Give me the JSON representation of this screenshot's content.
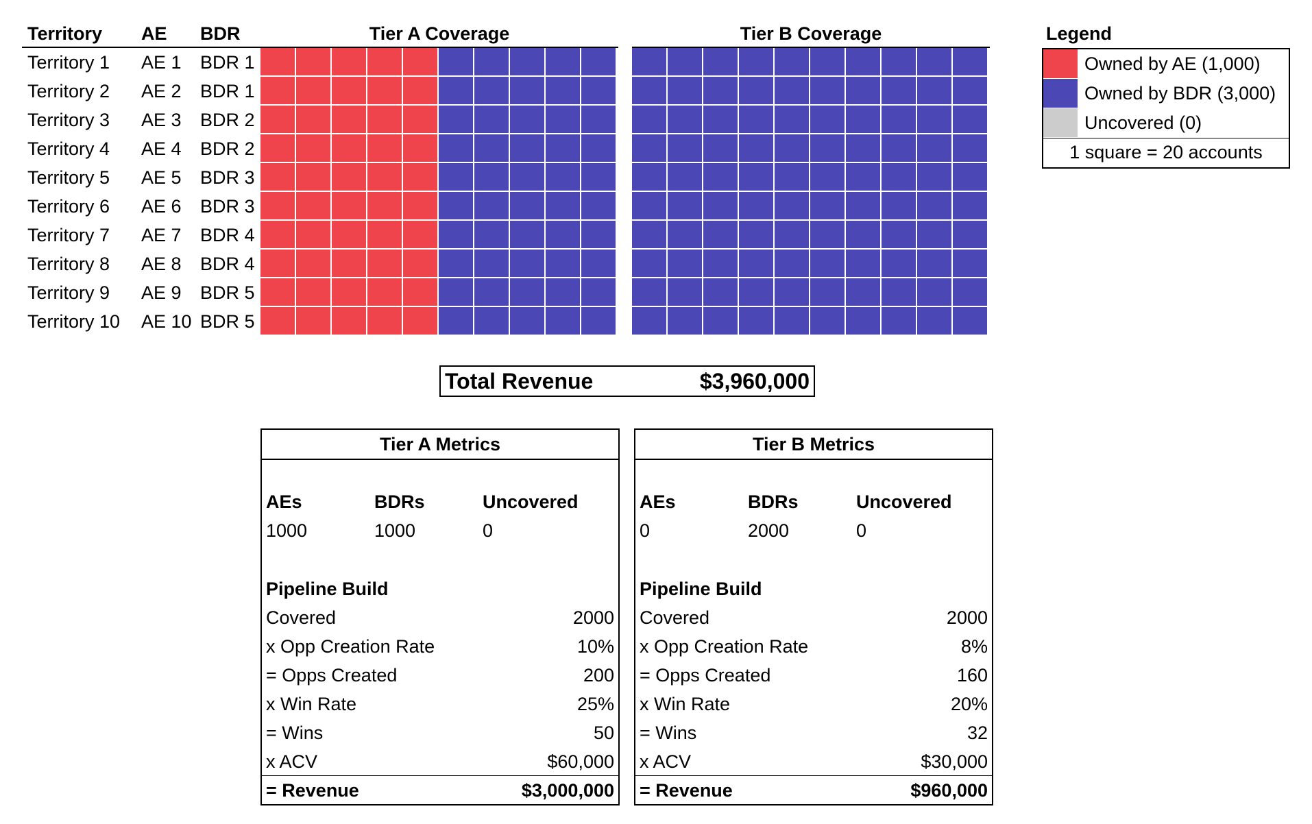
{
  "colors": {
    "ae": "#ef444b",
    "bdr": "#4b48b6",
    "uncovered": "#cccccc"
  },
  "territory_table": {
    "headers": {
      "territory": "Territory",
      "ae": "AE",
      "bdr": "BDR",
      "tier_a": "Tier A Coverage",
      "tier_b": "Tier B Coverage"
    },
    "rows": [
      {
        "territory": "Territory 1",
        "ae": "AE 1",
        "bdr": "BDR 1"
      },
      {
        "territory": "Territory 2",
        "ae": "AE 2",
        "bdr": "BDR 1"
      },
      {
        "territory": "Territory 3",
        "ae": "AE 3",
        "bdr": "BDR 2"
      },
      {
        "territory": "Territory 4",
        "ae": "AE 4",
        "bdr": "BDR 2"
      },
      {
        "territory": "Territory 5",
        "ae": "AE 5",
        "bdr": "BDR 3"
      },
      {
        "territory": "Territory 6",
        "ae": "AE 6",
        "bdr": "BDR 3"
      },
      {
        "territory": "Territory 7",
        "ae": "AE 7",
        "bdr": "BDR 4"
      },
      {
        "territory": "Territory 8",
        "ae": "AE 8",
        "bdr": "BDR 4"
      },
      {
        "territory": "Territory 9",
        "ae": "AE 9",
        "bdr": "BDR 5"
      },
      {
        "territory": "Territory 10",
        "ae": "AE 10",
        "bdr": "BDR 5"
      }
    ],
    "squares_per_row": 10,
    "tier_a_ae_squares_per_row": 5,
    "tier_a_bdr_squares_per_row": 5,
    "tier_b_ae_squares_per_row": 0,
    "tier_b_bdr_squares_per_row": 10
  },
  "legend": {
    "title": "Legend",
    "items": [
      {
        "label": "Owned by AE (1,000)",
        "color_key": "ae"
      },
      {
        "label": "Owned by BDR (3,000)",
        "color_key": "bdr"
      },
      {
        "label": "Uncovered (0)",
        "color_key": "uncovered"
      }
    ],
    "footnote": "1 square = 20 accounts"
  },
  "total": {
    "label": "Total Revenue",
    "value": "$3,960,000"
  },
  "tier_a_metrics": {
    "title": "Tier A Metrics",
    "headers": [
      "AEs",
      "BDRs",
      "Uncovered"
    ],
    "counts": [
      "1000",
      "1000",
      "0"
    ],
    "section": "Pipeline Build",
    "rows": [
      {
        "label": "Covered",
        "value": "2000"
      },
      {
        "label": "x Opp Creation Rate",
        "value": "10%"
      },
      {
        "label": "= Opps Created",
        "value": "200"
      },
      {
        "label": "x Win Rate",
        "value": "25%"
      },
      {
        "label": "= Wins",
        "value": "50"
      },
      {
        "label": "x ACV",
        "value": "$60,000"
      }
    ],
    "revenue": {
      "label": "= Revenue",
      "value": "$3,000,000"
    }
  },
  "tier_b_metrics": {
    "title": "Tier B Metrics",
    "headers": [
      "AEs",
      "BDRs",
      "Uncovered"
    ],
    "counts": [
      "0",
      "2000",
      "0"
    ],
    "section": "Pipeline Build",
    "rows": [
      {
        "label": "Covered",
        "value": "2000"
      },
      {
        "label": "x Opp Creation Rate",
        "value": "8%"
      },
      {
        "label": "= Opps Created",
        "value": "160"
      },
      {
        "label": "x Win Rate",
        "value": "20%"
      },
      {
        "label": "= Wins",
        "value": "32"
      },
      {
        "label": "x ACV",
        "value": "$30,000"
      }
    ],
    "revenue": {
      "label": "= Revenue",
      "value": "$960,000"
    }
  }
}
